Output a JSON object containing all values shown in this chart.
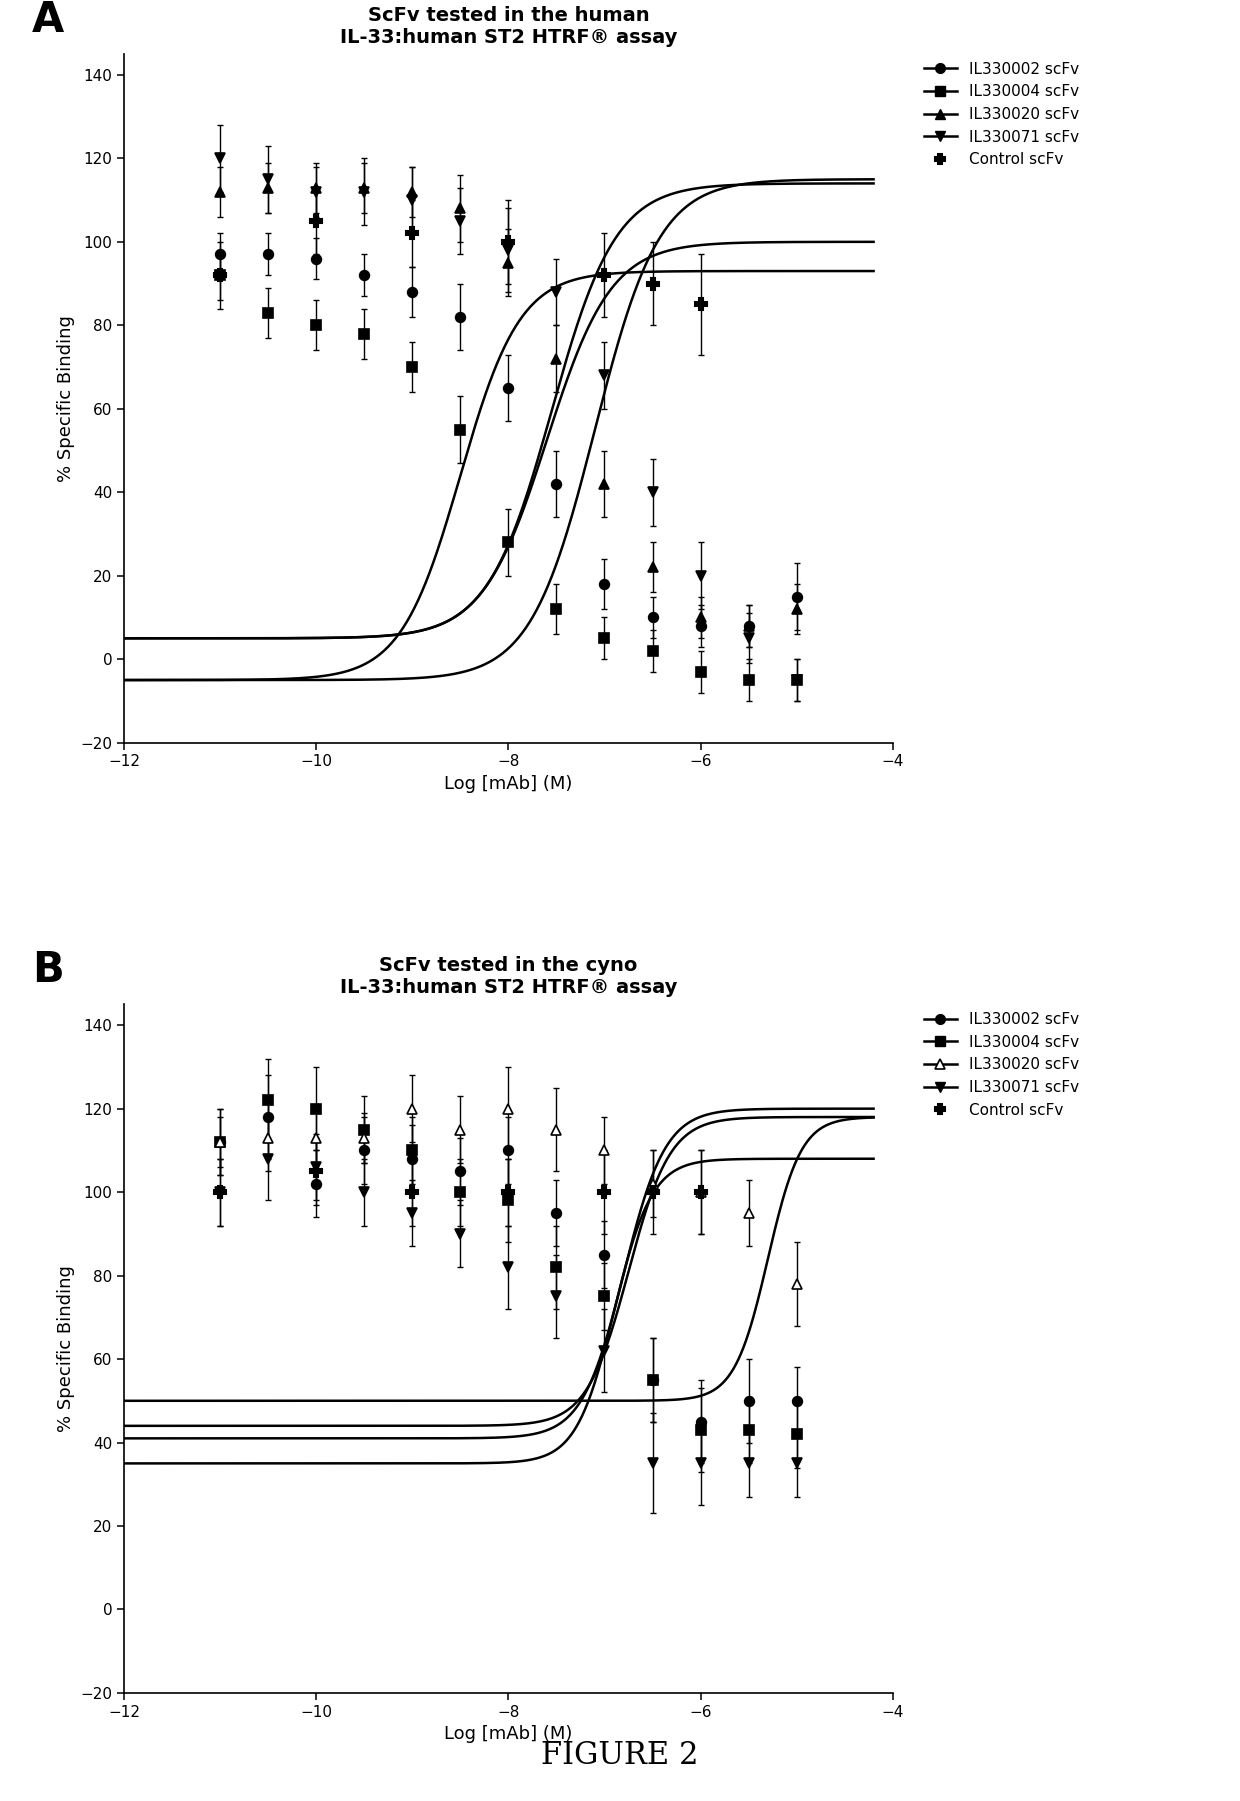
{
  "title_A": "ScFv tested in the human\nIL-33:human ST2 HTRF® assay",
  "title_B": "ScFv tested in the cyno\nIL-33:human ST2 HTRF® assay",
  "xlabel": "Log [mAb] (M)",
  "ylabel": "% Specific Binding",
  "figure_label": "FIGURE 2",
  "xlim": [
    -12,
    -4
  ],
  "ylim": [
    -20,
    145
  ],
  "xticks": [
    -12,
    -10,
    -8,
    -6,
    -4
  ],
  "yticks": [
    -20,
    0,
    20,
    40,
    60,
    80,
    100,
    120,
    140
  ],
  "panelA": {
    "series": [
      {
        "name": "IL330002 scFv",
        "marker": "o",
        "fillstyle": "full",
        "x_data": [
          -11,
          -10.5,
          -10,
          -9.5,
          -9,
          -8.5,
          -8,
          -7.5,
          -7,
          -6.5,
          -6,
          -5.5,
          -5
        ],
        "y_data": [
          97,
          97,
          96,
          92,
          88,
          82,
          65,
          42,
          18,
          10,
          8,
          8,
          15
        ],
        "y_err": [
          5,
          5,
          5,
          5,
          6,
          8,
          8,
          8,
          6,
          5,
          5,
          5,
          8
        ],
        "ec50": -7.6,
        "hill": 1.3,
        "top": 100,
        "bottom": 5
      },
      {
        "name": "IL330004 scFv",
        "marker": "s",
        "fillstyle": "full",
        "x_data": [
          -11,
          -10.5,
          -10,
          -9.5,
          -9,
          -8.5,
          -8,
          -7.5,
          -7,
          -6.5,
          -6,
          -5.5,
          -5
        ],
        "y_data": [
          92,
          83,
          80,
          78,
          70,
          55,
          28,
          12,
          5,
          2,
          -3,
          -5,
          -5
        ],
        "y_err": [
          6,
          6,
          6,
          6,
          6,
          8,
          8,
          6,
          5,
          5,
          5,
          5,
          5
        ],
        "ec50": -8.5,
        "hill": 1.4,
        "top": 93,
        "bottom": -5
      },
      {
        "name": "IL330020 scFv",
        "marker": "^",
        "fillstyle": "full",
        "x_data": [
          -11,
          -10.5,
          -10,
          -9.5,
          -9,
          -8.5,
          -8,
          -7.5,
          -7,
          -6.5,
          -6,
          -5.5,
          -5
        ],
        "y_data": [
          112,
          113,
          113,
          113,
          112,
          108,
          95,
          72,
          42,
          22,
          10,
          8,
          12
        ],
        "y_err": [
          6,
          6,
          6,
          6,
          6,
          8,
          8,
          8,
          8,
          6,
          5,
          5,
          6
        ],
        "ec50": -7.55,
        "hill": 1.3,
        "top": 114,
        "bottom": 5
      },
      {
        "name": "IL330071 scFv",
        "marker": "v",
        "fillstyle": "full",
        "x_data": [
          -11,
          -10.5,
          -10,
          -9.5,
          -9,
          -8.5,
          -8,
          -7.5,
          -7,
          -6.5,
          -6,
          -5.5,
          -5
        ],
        "y_data": [
          120,
          115,
          112,
          112,
          110,
          105,
          98,
          88,
          68,
          40,
          20,
          5,
          -5
        ],
        "y_err": [
          8,
          8,
          6,
          8,
          8,
          8,
          10,
          8,
          8,
          8,
          8,
          6,
          5
        ],
        "ec50": -7.1,
        "hill": 1.3,
        "top": 115,
        "bottom": -5
      }
    ],
    "control": {
      "x_data": [
        -11,
        -10,
        -9,
        -8,
        -7,
        -6.5,
        -6
      ],
      "y_data": [
        92,
        105,
        102,
        100,
        92,
        90,
        85
      ],
      "y_err": [
        8,
        8,
        8,
        10,
        10,
        10,
        12
      ]
    }
  },
  "panelB": {
    "series": [
      {
        "name": "IL330002 scFv",
        "marker": "o",
        "fillstyle": "full",
        "x_data": [
          -11,
          -10.5,
          -10,
          -9.5,
          -9,
          -8.5,
          -8,
          -7.5,
          -7,
          -6.5,
          -6,
          -5.5,
          -5
        ],
        "y_data": [
          112,
          118,
          102,
          110,
          108,
          105,
          110,
          95,
          85,
          55,
          45,
          50,
          50
        ],
        "y_err": [
          8,
          10,
          8,
          8,
          8,
          8,
          8,
          8,
          8,
          10,
          10,
          10,
          8
        ],
        "ec50": -6.75,
        "hill": 2.0,
        "top": 118,
        "bottom": 44
      },
      {
        "name": "IL330004 scFv",
        "marker": "s",
        "fillstyle": "full",
        "x_data": [
          -11,
          -10.5,
          -10,
          -9.5,
          -9,
          -8.5,
          -8,
          -7.5,
          -7,
          -6.5,
          -6,
          -5.5,
          -5
        ],
        "y_data": [
          112,
          122,
          120,
          115,
          110,
          100,
          98,
          82,
          75,
          55,
          43,
          43,
          42
        ],
        "y_err": [
          8,
          10,
          10,
          8,
          8,
          8,
          10,
          10,
          8,
          10,
          10,
          8,
          8
        ],
        "ec50": -6.8,
        "hill": 2.0,
        "top": 120,
        "bottom": 41
      },
      {
        "name": "IL330020 scFv",
        "marker": "^",
        "fillstyle": "none",
        "x_data": [
          -11,
          -10.5,
          -10,
          -9.5,
          -9,
          -8.5,
          -8,
          -7.5,
          -7,
          -6.5,
          -6,
          -5.5,
          -5
        ],
        "y_data": [
          112,
          113,
          113,
          113,
          120,
          115,
          120,
          115,
          110,
          102,
          100,
          95,
          78
        ],
        "y_err": [
          6,
          8,
          8,
          6,
          8,
          8,
          10,
          10,
          8,
          8,
          10,
          8,
          10
        ],
        "ec50": -5.3,
        "hill": 2.5,
        "top": 118,
        "bottom": 50
      },
      {
        "name": "IL330071 scFv",
        "marker": "v",
        "fillstyle": "full",
        "x_data": [
          -11,
          -10.5,
          -10,
          -9.5,
          -9,
          -8.5,
          -8,
          -7.5,
          -7,
          -6.5,
          -6,
          -5.5,
          -5
        ],
        "y_data": [
          100,
          108,
          106,
          100,
          95,
          90,
          82,
          75,
          62,
          35,
          35,
          35,
          35
        ],
        "y_err": [
          8,
          10,
          8,
          8,
          8,
          8,
          10,
          10,
          10,
          12,
          10,
          8,
          8
        ],
        "ec50": -6.9,
        "hill": 2.2,
        "top": 108,
        "bottom": 35
      }
    ],
    "control": {
      "x_data": [
        -11,
        -10,
        -9,
        -8,
        -7,
        -6.5,
        -6
      ],
      "y_data": [
        100,
        105,
        100,
        100,
        100,
        100,
        100
      ],
      "y_err": [
        8,
        8,
        8,
        8,
        10,
        10,
        10
      ]
    }
  }
}
